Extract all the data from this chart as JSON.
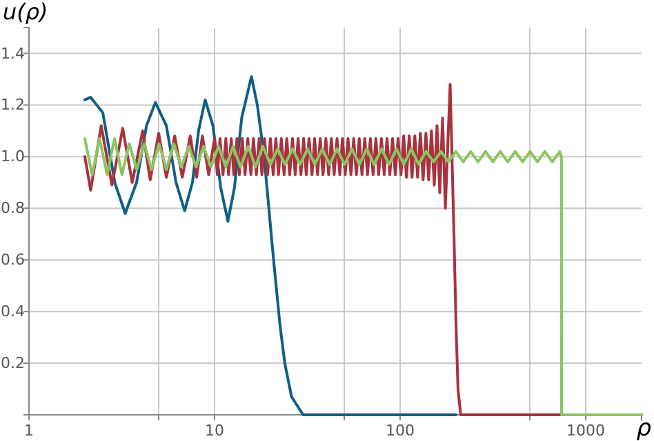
{
  "chart_data": {
    "type": "line",
    "xlabel": "ρ",
    "ylabel": "u(ρ)",
    "log": "x",
    "grid": true,
    "xlim": [
      1,
      2000
    ],
    "ylim": [
      0,
      1.5
    ],
    "xticks": [
      1,
      {
        "value": 5,
        "label": null
      },
      10,
      {
        "value": 50,
        "label": null
      },
      100,
      {
        "value": 500,
        "label": null
      },
      1000
    ],
    "yticks": [
      0.2,
      0.4,
      0.6,
      0.8,
      {
        "value": 1,
        "label": "1.0"
      },
      1.2,
      1.4
    ],
    "series": [
      {
        "color": "#0f5f85",
        "x": [
          2,
          2.15,
          2.5,
          2.9,
          3.3,
          3.8,
          4.3,
          4.8,
          5.5,
          6.2,
          6.9,
          7.6,
          8.2,
          8.9,
          9.8,
          10.8,
          11.8,
          12.8,
          14,
          15.8,
          17,
          18.5,
          20.8,
          22.5,
          23.9,
          26,
          30,
          200
        ],
        "values": [
          1.22,
          1.23,
          1.17,
          0.9,
          0.78,
          0.9,
          1.12,
          1.21,
          1.12,
          0.9,
          0.79,
          0.9,
          1.1,
          1.22,
          1.12,
          0.88,
          0.75,
          0.88,
          1.15,
          1.31,
          1.2,
          1.0,
          0.6,
          0.35,
          0.2,
          0.07,
          0,
          0
        ]
      },
      {
        "color": "#a8323e",
        "x": [
          2,
          2.15,
          2.45,
          2.8,
          3.2,
          3.6,
          4.1,
          4.5,
          5,
          5.5,
          6.1,
          6.7,
          7.4,
          8,
          8.6,
          9.3,
          10,
          10.35,
          10.7,
          11.1,
          11.5,
          11.9,
          12.3,
          12.7,
          13.2,
          13.6,
          14.1,
          14.6,
          15.1,
          15.7,
          16.2,
          16.8,
          17.4,
          18,
          18.6,
          19.3,
          20,
          20.7,
          21.4,
          22.1,
          22.9,
          23.7,
          24.5,
          25.4,
          26.3,
          27.2,
          28.2,
          29.2,
          30.2,
          31.2,
          32.3,
          33.5,
          34.6,
          35.9,
          37.1,
          38.4,
          39.8,
          41.2,
          42.6,
          44.1,
          45.7,
          47.3,
          48.9,
          50.6,
          52.4,
          54.3,
          56.2,
          58.1,
          60.2,
          62.3,
          64.5,
          66.7,
          69.1,
          71.5,
          74,
          76.6,
          79.3,
          82.1,
          85,
          88,
          91,
          94.2,
          97.5,
          101,
          104.5,
          108.2,
          112,
          115.9,
          120,
          124.2,
          128.6,
          133,
          137.7,
          142.5,
          147.5,
          152.7,
          158,
          163.5,
          169.3,
          175.2,
          186,
          195,
          200,
          205,
          212,
          2000
        ],
        "values": [
          1.0,
          0.87,
          1.12,
          0.89,
          1.11,
          0.9,
          1.1,
          0.91,
          1.09,
          0.92,
          1.08,
          0.92,
          1.08,
          0.92,
          1.08,
          0.93,
          1.07,
          0.93,
          1.07,
          0.93,
          1.07,
          0.93,
          1.07,
          0.93,
          1.07,
          0.93,
          1.07,
          0.93,
          1.07,
          0.93,
          1.07,
          0.93,
          1.07,
          0.93,
          1.07,
          0.93,
          1.07,
          0.93,
          1.07,
          0.93,
          1.07,
          0.93,
          1.07,
          0.93,
          1.07,
          0.93,
          1.07,
          0.93,
          1.07,
          0.93,
          1.07,
          0.93,
          1.07,
          0.93,
          1.07,
          0.93,
          1.07,
          0.93,
          1.07,
          0.93,
          1.07,
          0.93,
          1.07,
          0.93,
          1.07,
          0.93,
          1.07,
          0.93,
          1.07,
          0.93,
          1.07,
          0.93,
          1.07,
          0.93,
          1.07,
          0.93,
          1.07,
          0.93,
          1.07,
          0.93,
          1.07,
          0.93,
          1.07,
          0.93,
          1.08,
          0.92,
          1.08,
          0.92,
          1.08,
          0.92,
          1.09,
          0.91,
          1.09,
          0.91,
          1.1,
          0.89,
          1.12,
          0.86,
          1.15,
          0.8,
          1.28,
          0.7,
          0.35,
          0.1,
          0,
          0
        ]
      },
      {
        "color": "#8cc462",
        "x": [
          2,
          2.19,
          2.4,
          2.64,
          2.89,
          3.17,
          3.47,
          3.81,
          4.18,
          4.58,
          5.02,
          5.5,
          6.03,
          6.62,
          7.26,
          7.96,
          8.72,
          9.56,
          10.5,
          11.5,
          12.6,
          13.8,
          15.2,
          16.6,
          18.2,
          20,
          21.9,
          24,
          26.3,
          28.9,
          31.7,
          34.7,
          38.1,
          41.7,
          45.7,
          50.2,
          55,
          60.3,
          66.1,
          72.5,
          79.5,
          87.1,
          95.5,
          104.7,
          114.8,
          125.9,
          138,
          151.4,
          166,
          182,
          199.5,
          218.8,
          239.9,
          263,
          288.4,
          316.2,
          346.7,
          380.2,
          416.9,
          457.1,
          501.2,
          549.5,
          602.6,
          660.7,
          724.4,
          740,
          741,
          2000
        ],
        "values": [
          1.07,
          0.93,
          1.07,
          0.93,
          1.07,
          0.93,
          1.05,
          0.95,
          1.05,
          0.95,
          1.05,
          0.95,
          1.05,
          0.96,
          1.04,
          0.96,
          1.04,
          0.96,
          1.04,
          0.96,
          1.04,
          0.96,
          1.04,
          0.96,
          1.04,
          0.97,
          1.03,
          0.97,
          1.03,
          0.97,
          1.03,
          0.97,
          1.03,
          0.97,
          1.03,
          0.97,
          1.03,
          0.97,
          1.03,
          0.97,
          1.03,
          0.97,
          1.03,
          0.97,
          1.03,
          0.97,
          1.02,
          0.98,
          1.02,
          0.98,
          1.02,
          0.98,
          1.02,
          0.98,
          1.02,
          0.98,
          1.02,
          0.98,
          1.02,
          0.98,
          1.02,
          0.98,
          1.02,
          0.98,
          1.02,
          1.0,
          0,
          0
        ]
      }
    ]
  }
}
